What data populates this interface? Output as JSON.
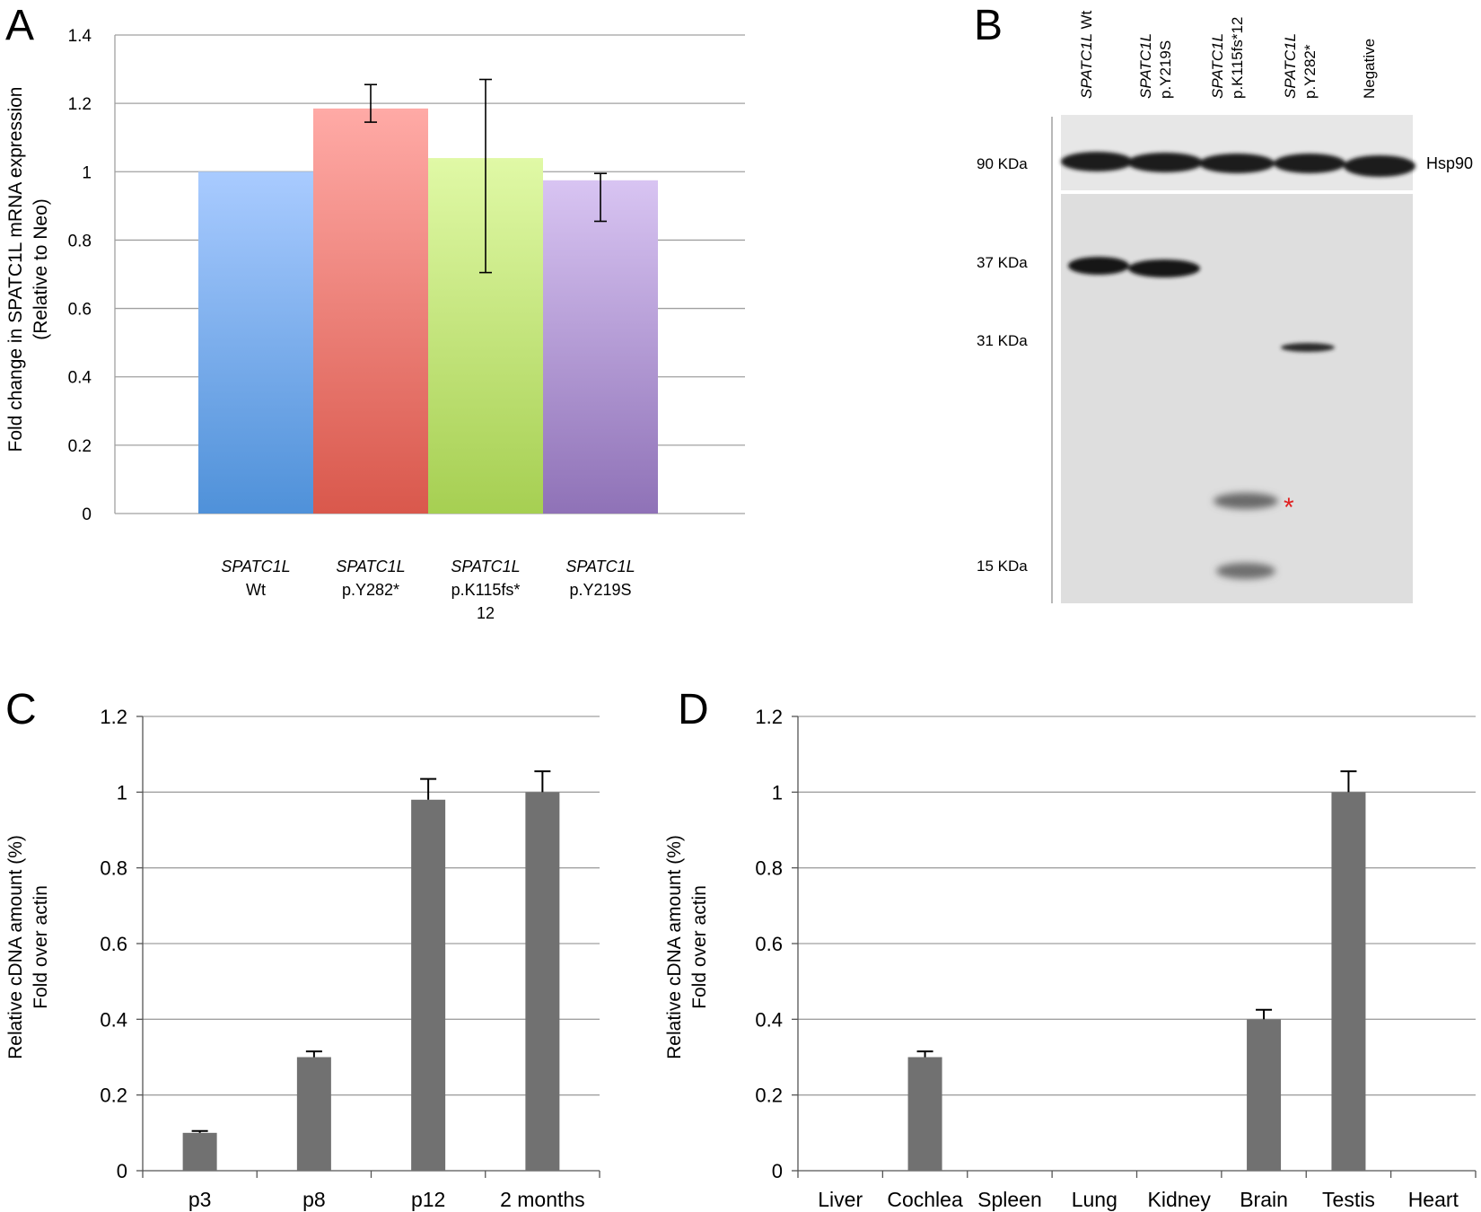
{
  "panels": {
    "a": "A",
    "b": "B",
    "c": "C",
    "d": "D"
  },
  "colors": {
    "wt_top": "#a9cbff",
    "wt_bottom": "#4f91d9",
    "y282_top": "#ffaaa6",
    "y282_bottom": "#d9584c",
    "k115_top": "#e0f9a6",
    "k115_bottom": "#a6cf52",
    "y219_top": "#d8c4f2",
    "y219_bottom": "#8f72b7",
    "gray_bar": "#717171",
    "grid": "#a0a0a0",
    "asterisk": "#e02020"
  },
  "chart_data": [
    {
      "id": "A",
      "type": "bar",
      "ylabel_line1": "Fold change in SPATC1L mRNA expression",
      "ylabel_line2": "(Relative to Neo)",
      "ylim": [
        0,
        1.4
      ],
      "yticks": [
        "0",
        "0.2",
        "0.4",
        "0.6",
        "0.8",
        "1",
        "1.2",
        "1.4"
      ],
      "categories": [
        {
          "gene": "SPATC1L",
          "variant": "Wt",
          "variant2": ""
        },
        {
          "gene": "SPATC1L",
          "variant": "p.Y282*",
          "variant2": ""
        },
        {
          "gene": "SPATC1L",
          "variant": "p.K115fs*",
          "variant2": "12"
        },
        {
          "gene": "SPATC1L",
          "variant": "p.Y219S",
          "variant2": ""
        }
      ],
      "values": [
        1.0,
        1.185,
        1.04,
        0.975
      ],
      "error_low": [
        null,
        1.145,
        0.705,
        0.855
      ],
      "error_high": [
        null,
        1.255,
        1.27,
        0.995
      ]
    },
    {
      "id": "C",
      "type": "bar",
      "ylabel_line1": "Relative cDNA amount (%)",
      "ylabel_line2": "Fold over actin",
      "ylim": [
        0,
        1.2
      ],
      "yticks": [
        "0",
        "0.2",
        "0.4",
        "0.6",
        "0.8",
        "1",
        "1.2"
      ],
      "categories": [
        "p3",
        "p8",
        "p12",
        "2 months"
      ],
      "values": [
        0.1,
        0.3,
        0.98,
        1.0
      ],
      "error_high": [
        0.105,
        0.315,
        1.035,
        1.055
      ]
    },
    {
      "id": "D",
      "type": "bar",
      "ylabel_line1": "Relative cDNA amount (%)",
      "ylabel_line2": "Fold over actin",
      "ylim": [
        0,
        1.2
      ],
      "yticks": [
        "0",
        "0.2",
        "0.4",
        "0.6",
        "0.8",
        "1",
        "1.2"
      ],
      "categories": [
        "Liver",
        "Cochlea",
        "Spleen",
        "Lung",
        "Kidney",
        "Brain",
        "Testis",
        "Heart"
      ],
      "values": [
        0,
        0.3,
        0,
        0,
        0,
        0.4,
        1.0,
        0
      ],
      "error_high": [
        null,
        0.315,
        null,
        null,
        null,
        0.425,
        1.055,
        null
      ]
    }
  ],
  "western_blot": {
    "lanes": [
      {
        "gene": "SPATC1L",
        "variant": "Wt"
      },
      {
        "gene": "SPATC1L",
        "variant": "p.Y219S"
      },
      {
        "gene": "SPATC1L",
        "variant": "p.K115fs*12"
      },
      {
        "gene": "SPATC1L",
        "variant": "p.Y282*"
      },
      {
        "gene": "",
        "variant": "Negative"
      }
    ],
    "markers": [
      "90 KDa",
      "37 KDa",
      "31 KDa",
      "15 KDa"
    ],
    "loading_control": "Hsp90",
    "asterisk": "*"
  }
}
